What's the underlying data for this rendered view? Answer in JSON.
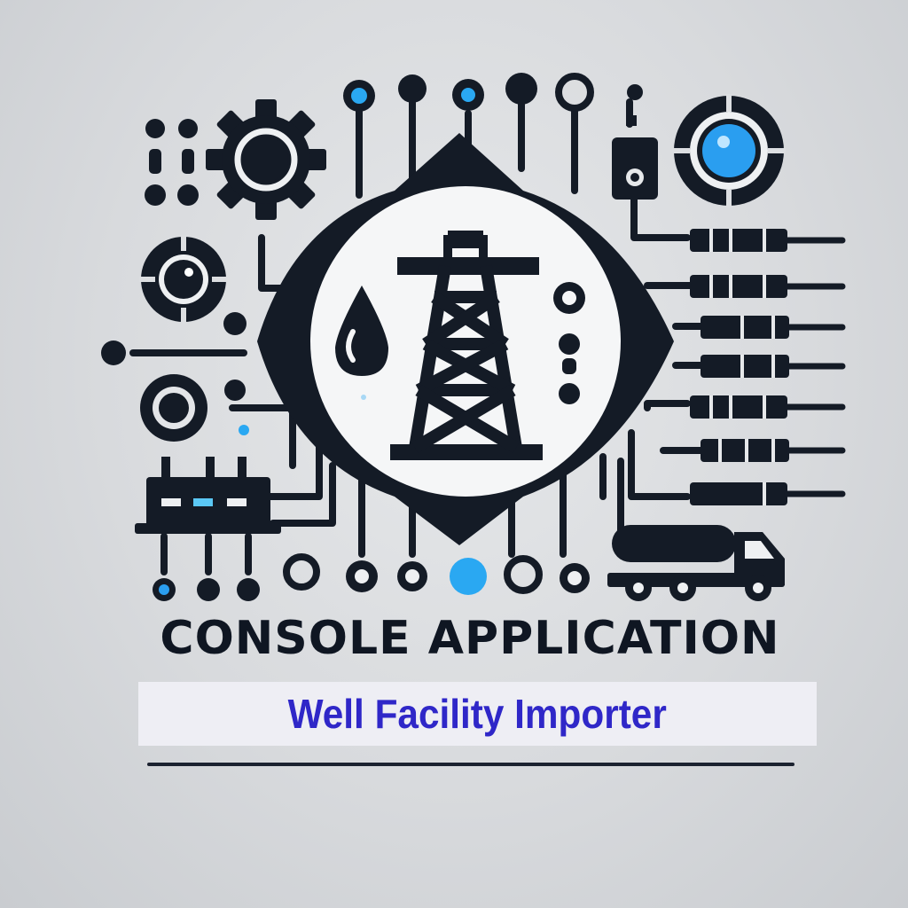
{
  "logo": {
    "heading": "CONSOLE APPLICATION",
    "subtitle": "Well Facility Importer",
    "icons": [
      "oil-derrick-icon",
      "oil-drop-icon",
      "gear-icon",
      "tanker-truck-icon",
      "target-icon",
      "circuit-trace-icon",
      "node-icon"
    ],
    "colors": {
      "ink": "#141b26",
      "accent_blue": "#2aa8f2",
      "banner_bg": "#eeeef4",
      "banner_text": "#2f27c8",
      "background": "#d8dadd"
    }
  }
}
